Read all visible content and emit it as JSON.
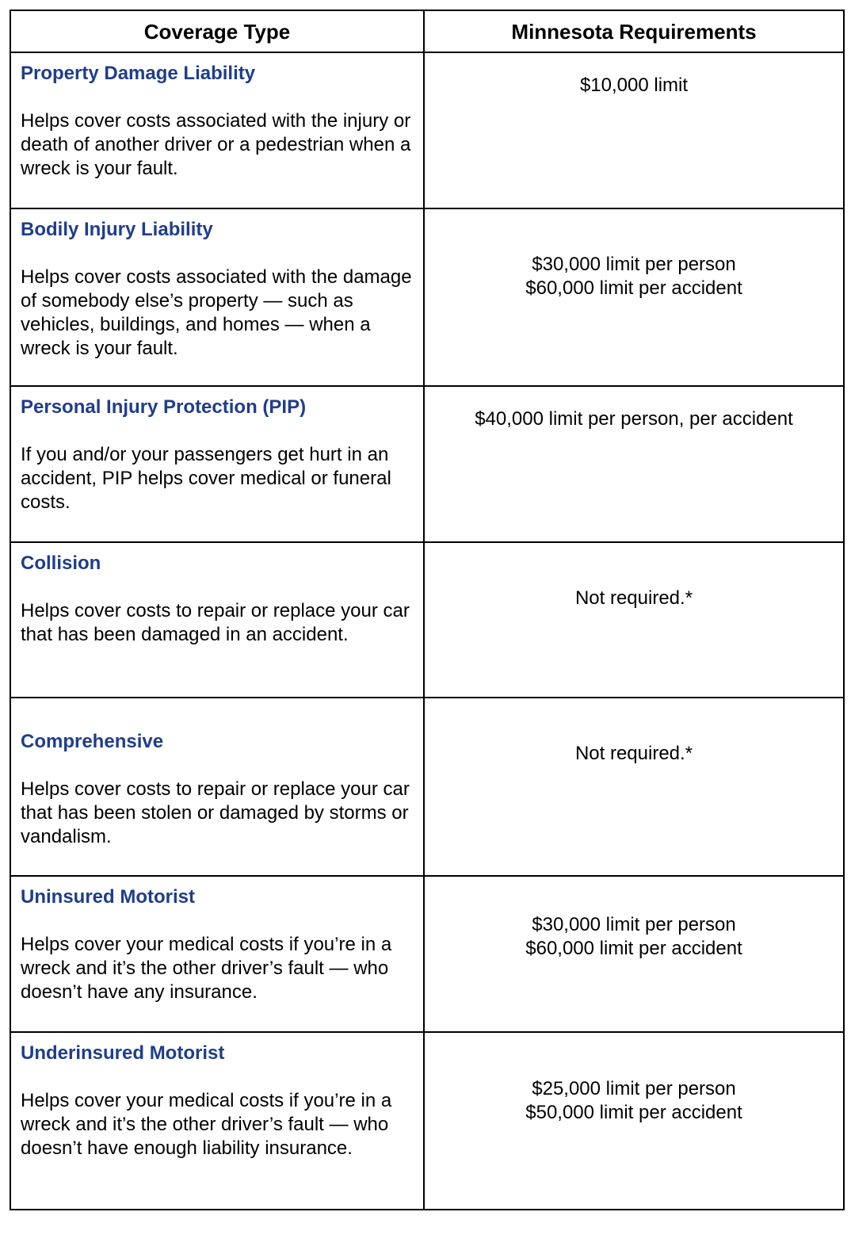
{
  "header": {
    "coverage_type": "Coverage Type",
    "requirements": "Minnesota Requirements"
  },
  "colors": {
    "title": "#1f3d8a",
    "border": "#000000"
  },
  "rows": [
    {
      "title": "Property Damage Liability",
      "description": "Helps cover costs associated with the injury or death of another driver or a pedestrian when a wreck is your fault.",
      "requirement": [
        "$10,000 limit"
      ]
    },
    {
      "title": "Bodily Injury Liability",
      "description": "Helps cover costs associated with the damage of somebody else’s property — such as vehicles, buildings, and homes — when a wreck is your fault.",
      "requirement": [
        "$30,000 limit per person",
        "$60,000 limit per accident"
      ]
    },
    {
      "title": "Personal Injury Protection (PIP)",
      "description": "If you and/or your passengers get hurt in an accident, PIP helps cover medical or funeral costs.",
      "requirement": [
        "$40,000 limit per person, per accident"
      ]
    },
    {
      "title": "Collision",
      "description": "Helps cover costs to repair or replace your car that has been damaged in an accident.",
      "requirement": [
        "Not required.*"
      ]
    },
    {
      "title": "Comprehensive",
      "description": "Helps cover costs to repair or replace your car that has been stolen or damaged by storms or vandalism.",
      "requirement": [
        "Not required.*"
      ]
    },
    {
      "title": "Uninsured Motorist",
      "description": "Helps cover your medical costs if you’re in a wreck and it’s the other driver’s fault — who doesn’t have any insurance.",
      "requirement": [
        "$30,000 limit per person",
        "$60,000 limit per accident"
      ]
    },
    {
      "title": "Underinsured Motorist",
      "description": "Helps cover your medical costs if you’re in a wreck and it’s the other driver’s fault — who doesn’t have enough liability insurance.",
      "requirement": [
        "$25,000 limit per person",
        "$50,000 limit per accident"
      ]
    }
  ]
}
